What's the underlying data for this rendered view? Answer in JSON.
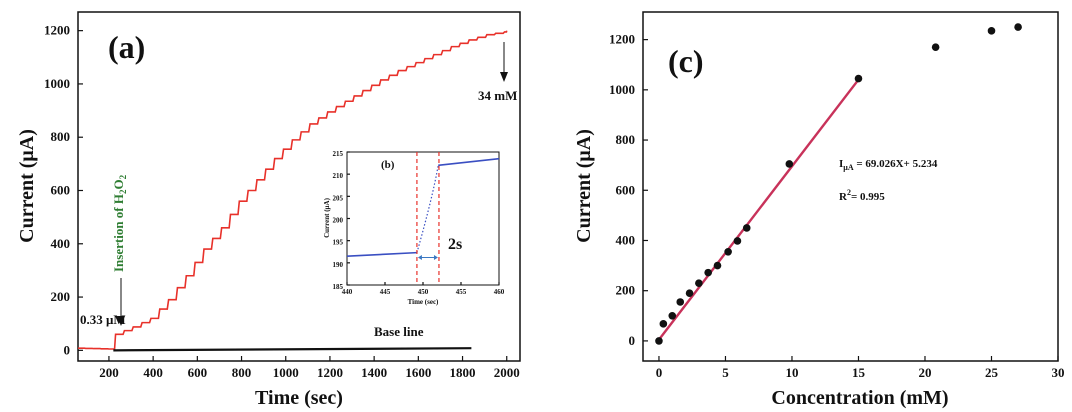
{
  "chart_data": [
    {
      "type": "line",
      "panel_label": "(a)",
      "xlabel": "Time (sec)",
      "ylabel": "Current (μA)",
      "xlim": [
        60,
        2060
      ],
      "ylim": [
        -40,
        1270
      ],
      "xticks": [
        200,
        400,
        600,
        800,
        1000,
        1200,
        1400,
        1600,
        1800,
        2000
      ],
      "yticks": [
        0,
        200,
        400,
        600,
        800,
        1000,
        1200
      ],
      "series": [
        {
          "name": "",
          "color": "#e8312a",
          "x": [
            60,
            200,
            230,
            310,
            390,
            470,
            550,
            630,
            710,
            790,
            870,
            950,
            1030,
            1110,
            1190,
            1270,
            1350,
            1430,
            1510,
            1590,
            1670,
            1750,
            1830,
            1910,
            1990,
            2000
          ],
          "y": [
            8,
            5,
            60,
            88,
            120,
            190,
            280,
            380,
            460,
            560,
            640,
            720,
            790,
            850,
            895,
            935,
            975,
            1015,
            1050,
            1080,
            1110,
            1140,
            1165,
            1185,
            1195,
            1200
          ]
        },
        {
          "name": "",
          "color": "#111111",
          "x": [
            220,
            1840
          ],
          "y": [
            0,
            8
          ]
        }
      ],
      "annotations": {
        "insertion": "Insertion of H",
        "insertion_sub": "2",
        "insertion_tail": "O",
        "insertion_sub2": "2",
        "start_conc": "0.33 μM",
        "end_conc": "34 mM",
        "baseline": "Base line"
      },
      "inset": {
        "label": "(b)",
        "xlabel": "Time (sec)",
        "ylabel": "Current (μA)",
        "xlim": [
          440,
          460
        ],
        "ylim": [
          185,
          215
        ],
        "xticks": [
          440,
          445,
          450,
          455,
          460
        ],
        "yticks": [
          185,
          190,
          195,
          200,
          205,
          210,
          215
        ],
        "series_x": [
          440,
          449.2,
          452,
          460
        ],
        "series_y": [
          191.5,
          192.3,
          212,
          213.5
        ],
        "marker_left": 449.2,
        "marker_right": 452.1,
        "span_text": "2s",
        "line_color": "#3a4fc2",
        "dash_color": "#e8312a"
      }
    },
    {
      "type": "scatter",
      "panel_label": "(c)",
      "xlabel": "Concentration (mM)",
      "ylabel": "Current (μA)",
      "xlim": [
        -1.2,
        30
      ],
      "ylim": [
        -80,
        1310
      ],
      "xticks": [
        0,
        5,
        10,
        15,
        20,
        25,
        30
      ],
      "yticks": [
        0,
        200,
        400,
        600,
        800,
        1000,
        1200
      ],
      "x": [
        0,
        0.33,
        1,
        1.6,
        2.3,
        3,
        3.7,
        4.4,
        5.2,
        5.9,
        6.6,
        9.8,
        15,
        20.8,
        25,
        27
      ],
      "y": [
        0,
        68,
        100,
        155,
        190,
        230,
        272,
        300,
        355,
        398,
        450,
        705,
        1045,
        1170,
        1235,
        1250
      ],
      "fit": {
        "x": [
          0,
          15.2
        ],
        "y": [
          5.234,
          1054.43
        ],
        "color": "#c8325a"
      },
      "equation": {
        "lead": "I",
        "sub": "μA",
        "rest": " = 69.026X+ 5.234"
      },
      "r2": {
        "lead": "R",
        "sup": "2",
        "rest": "= 0.995"
      }
    }
  ]
}
